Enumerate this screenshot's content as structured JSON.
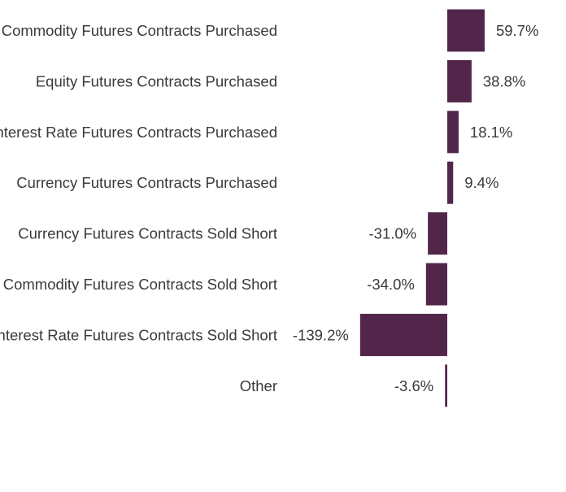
{
  "chart_data": {
    "type": "bar",
    "orientation": "horizontal",
    "title": "",
    "xlabel": "",
    "ylabel": "",
    "categories": [
      "Commodity Futures Contracts Purchased",
      "Equity Futures Contracts Purchased",
      "Interest Rate Futures Contracts Purchased",
      "Currency Futures Contracts Purchased",
      "Currency Futures Contracts Sold Short",
      "Commodity Futures Contracts Sold Short",
      "Interest Rate Futures Contracts Sold Short",
      "Other"
    ],
    "values": [
      59.7,
      38.8,
      18.1,
      9.4,
      -31.0,
      -34.0,
      -139.2,
      -3.6
    ],
    "value_labels": [
      "59.7%",
      "38.8%",
      "18.1%",
      "9.4%",
      "-31.0%",
      "-34.0%",
      "-139.2%",
      "-3.6%"
    ],
    "bar_color": "#52264b",
    "text_color": "#3a3a3a",
    "grid": false,
    "legend": "none"
  }
}
